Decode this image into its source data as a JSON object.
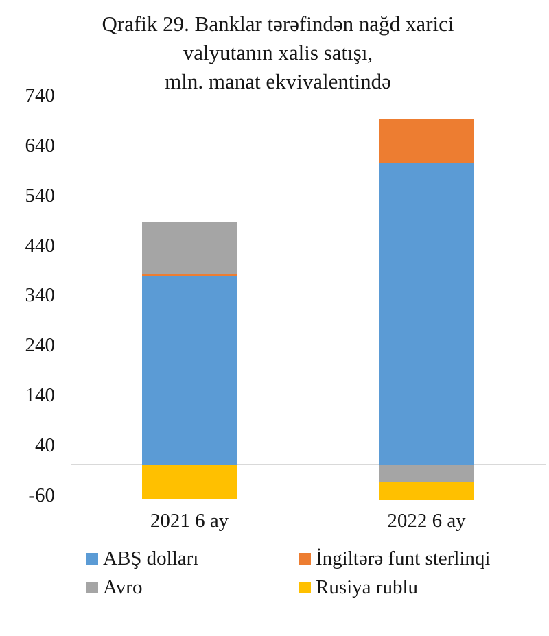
{
  "chart_data": {
    "type": "bar",
    "stacked": true,
    "title": "Qrafik 29. Banklar tərəfindən nağd xarici valyutanın xalis satışı, mln. manat ekvivalentində",
    "title_lines": [
      "Qrafik 29. Banklar tərəfindən nağd xarici",
      "valyutanın xalis satışı,",
      "mln. manat ekvivalentində"
    ],
    "categories": [
      "2021 6 ay",
      "2022 6 ay"
    ],
    "series": [
      {
        "name": "ABŞ dolları",
        "color": "#5B9BD5",
        "values": [
          378,
          606
        ]
      },
      {
        "name": "İngiltərə funt sterlinqi",
        "color": "#ED7D31",
        "values": [
          4,
          88
        ]
      },
      {
        "name": "Avro",
        "color": "#A5A5A5",
        "values": [
          105,
          -34
        ]
      },
      {
        "name": "Rusiya rublu",
        "color": "#FFC000",
        "values": [
          -68,
          -36
        ]
      }
    ],
    "y_axis": {
      "ticks": [
        740,
        640,
        540,
        440,
        340,
        240,
        140,
        40,
        -60
      ],
      "interval": 100,
      "ylim": [
        -90,
        755
      ]
    },
    "grid": false,
    "legend_position": "bottom",
    "axis_line_color": "#D9D9D9",
    "text_color": "#161616",
    "background_color": "#FFFFFF"
  }
}
